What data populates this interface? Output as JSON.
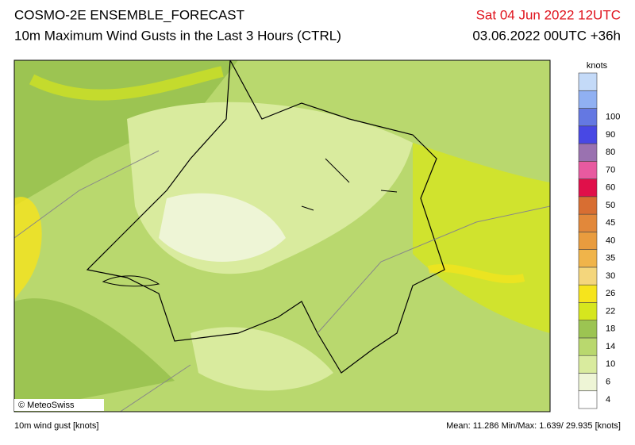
{
  "header": {
    "title": "COSMO-2E ENSEMBLE_FORECAST",
    "subtitle": "10m Maximum Wind Gusts in the Last 3 Hours (CTRL)",
    "valid_time": "Sat 04 Jun 2022 12UTC",
    "run": "03.06.2022 00UTC +36h"
  },
  "legend": {
    "unit": "knots",
    "colors": [
      "#ffffff",
      "#eef5d6",
      "#d9eb9e",
      "#b9d86e",
      "#9cc452",
      "#d6e61e",
      "#f6e41c",
      "#f4d67c",
      "#f0b44a",
      "#e99c3e",
      "#e2883a",
      "#d86e32",
      "#e0104a",
      "#e85aa0",
      "#9a72b0",
      "#4848e4",
      "#6478e2",
      "#90b0f2",
      "#c4daf8"
    ],
    "labels": [
      4,
      6,
      10,
      14,
      18,
      22,
      26,
      30,
      35,
      40,
      45,
      50,
      60,
      70,
      80,
      90,
      100
    ]
  },
  "map": {
    "credit": "© MeteoSwiss"
  },
  "footer": {
    "variable": "10m wind gust [knots]",
    "stats": "Mean:  11.286 Min/Max:  1.639/ 29.935 [knots]"
  }
}
